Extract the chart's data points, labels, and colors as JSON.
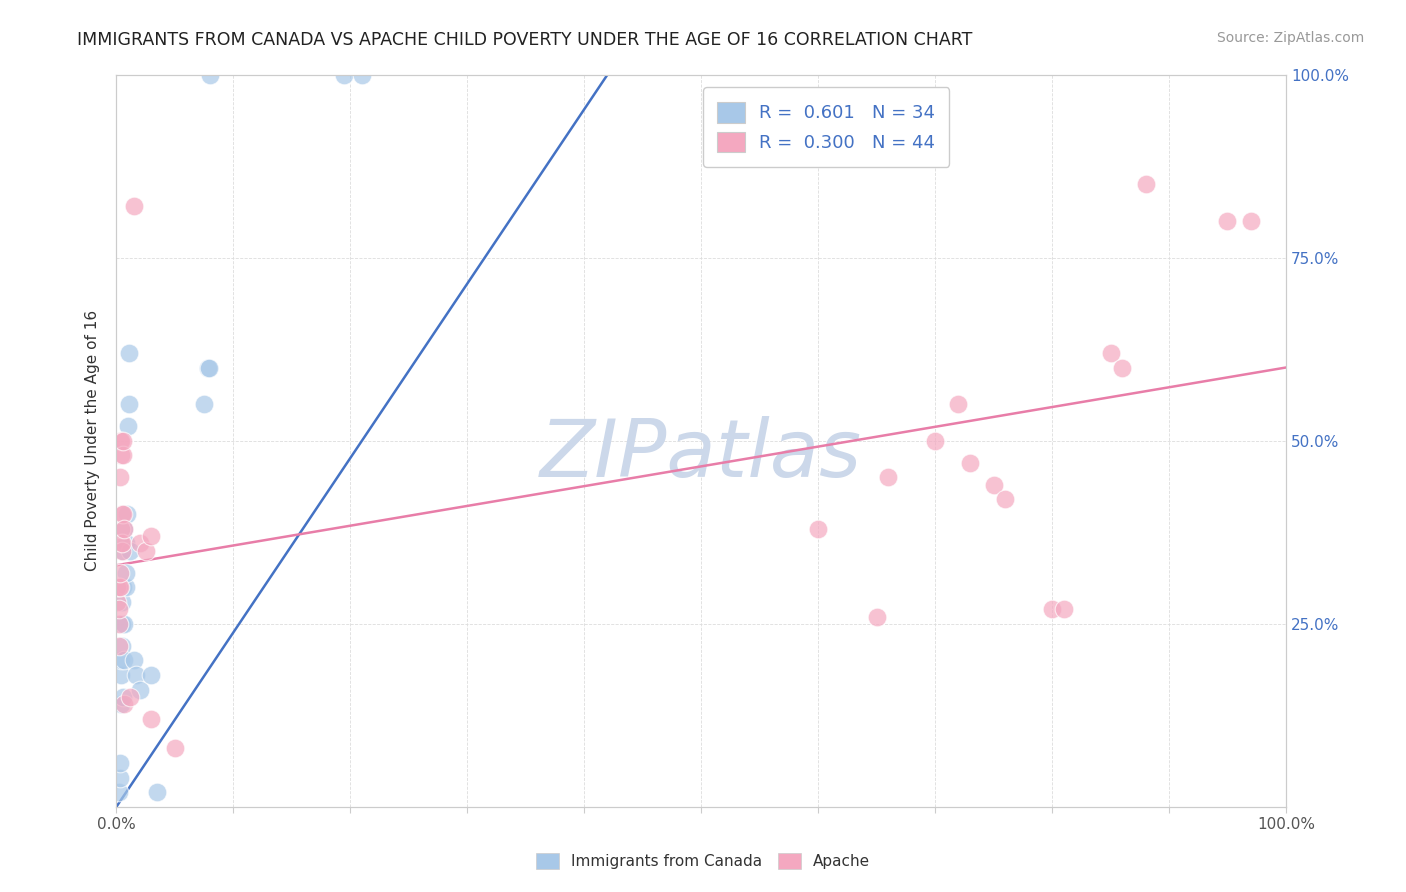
{
  "title": "IMMIGRANTS FROM CANADA VS APACHE CHILD POVERTY UNDER THE AGE OF 16 CORRELATION CHART",
  "source": "Source: ZipAtlas.com",
  "ylabel": "Child Poverty Under the Age of 16",
  "legend_bottom": [
    "Immigrants from Canada",
    "Apache"
  ],
  "blue_R": "0.601",
  "blue_N": "34",
  "pink_R": "0.300",
  "pink_N": "44",
  "xlim": [
    0,
    1
  ],
  "ylim": [
    0,
    1
  ],
  "blue_color": "#a8c8e8",
  "pink_color": "#f4a8c0",
  "blue_line_color": "#4472c4",
  "pink_line_color": "#e87da8",
  "title_color": "#222222",
  "source_color": "#999999",
  "axis_color": "#cccccc",
  "grid_color": "#dddddd",
  "watermark_color": "#ccd8ea",
  "blue_scatter": [
    [
      0.002,
      0.02
    ],
    [
      0.003,
      0.04
    ],
    [
      0.003,
      0.06
    ],
    [
      0.004,
      0.14
    ],
    [
      0.004,
      0.18
    ],
    [
      0.004,
      0.2
    ],
    [
      0.005,
      0.22
    ],
    [
      0.005,
      0.25
    ],
    [
      0.005,
      0.28
    ],
    [
      0.006,
      0.15
    ],
    [
      0.006,
      0.3
    ],
    [
      0.006,
      0.35
    ],
    [
      0.007,
      0.2
    ],
    [
      0.007,
      0.25
    ],
    [
      0.007,
      0.38
    ],
    [
      0.008,
      0.3
    ],
    [
      0.008,
      0.32
    ],
    [
      0.008,
      0.36
    ],
    [
      0.009,
      0.4
    ],
    [
      0.01,
      0.52
    ],
    [
      0.011,
      0.62
    ],
    [
      0.011,
      0.55
    ],
    [
      0.012,
      0.35
    ],
    [
      0.015,
      0.2
    ],
    [
      0.017,
      0.18
    ],
    [
      0.02,
      0.16
    ],
    [
      0.03,
      0.18
    ],
    [
      0.035,
      0.02
    ],
    [
      0.075,
      0.55
    ],
    [
      0.078,
      0.6
    ],
    [
      0.079,
      0.6
    ],
    [
      0.08,
      1.0
    ],
    [
      0.195,
      1.0
    ],
    [
      0.21,
      1.0
    ]
  ],
  "pink_scatter": [
    [
      0.001,
      0.28
    ],
    [
      0.001,
      0.3
    ],
    [
      0.002,
      0.25
    ],
    [
      0.002,
      0.27
    ],
    [
      0.002,
      0.22
    ],
    [
      0.002,
      0.3
    ],
    [
      0.003,
      0.3
    ],
    [
      0.003,
      0.32
    ],
    [
      0.003,
      0.45
    ],
    [
      0.003,
      0.5
    ],
    [
      0.004,
      0.48
    ],
    [
      0.004,
      0.5
    ],
    [
      0.004,
      0.36
    ],
    [
      0.004,
      0.38
    ],
    [
      0.005,
      0.35
    ],
    [
      0.005,
      0.4
    ],
    [
      0.005,
      0.36
    ],
    [
      0.006,
      0.4
    ],
    [
      0.006,
      0.48
    ],
    [
      0.006,
      0.5
    ],
    [
      0.007,
      0.38
    ],
    [
      0.007,
      0.14
    ],
    [
      0.012,
      0.15
    ],
    [
      0.02,
      0.36
    ],
    [
      0.025,
      0.35
    ],
    [
      0.03,
      0.12
    ],
    [
      0.03,
      0.37
    ],
    [
      0.05,
      0.08
    ],
    [
      0.015,
      0.82
    ],
    [
      0.6,
      0.38
    ],
    [
      0.65,
      0.26
    ],
    [
      0.66,
      0.45
    ],
    [
      0.7,
      0.5
    ],
    [
      0.72,
      0.55
    ],
    [
      0.73,
      0.47
    ],
    [
      0.75,
      0.44
    ],
    [
      0.76,
      0.42
    ],
    [
      0.8,
      0.27
    ],
    [
      0.81,
      0.27
    ],
    [
      0.85,
      0.62
    ],
    [
      0.86,
      0.6
    ],
    [
      0.88,
      0.85
    ],
    [
      0.95,
      0.8
    ],
    [
      0.97,
      0.8
    ]
  ],
  "blue_trend_x": [
    0.0,
    0.42
  ],
  "blue_trend_y": [
    0.0,
    1.0
  ],
  "pink_trend_x": [
    0.0,
    1.0
  ],
  "pink_trend_y": [
    0.33,
    0.6
  ]
}
